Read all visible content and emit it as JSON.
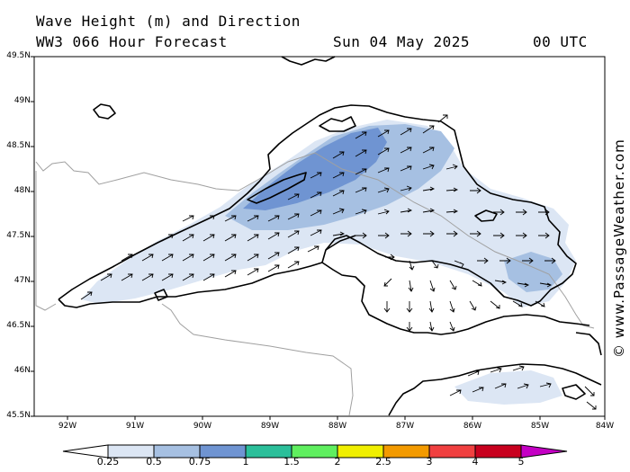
{
  "title": {
    "line1": "Wave Height (m) and Direction",
    "line2": "WW3 066 Hour Forecast",
    "date": "Sun 04 May 2025",
    "time": "00 UTC"
  },
  "watermark": "© www.PassageWeather.com",
  "lat_labels": [
    "49.5N",
    "49N",
    "48.5N",
    "48N",
    "47.5N",
    "47N",
    "46.5N",
    "46N",
    "45.5N"
  ],
  "lon_labels": [
    "92W",
    "91W",
    "90W",
    "89W",
    "88W",
    "87W",
    "86W",
    "85W",
    "84W"
  ],
  "colorbar": {
    "ticks": [
      "0.25",
      "0.5",
      "0.75",
      "1",
      "1.5",
      "2",
      "2.5",
      "3",
      "4",
      "5"
    ],
    "colors": [
      "#ffffff",
      "#dce6f4",
      "#a6c0e2",
      "#6f94d2",
      "#2bbf9a",
      "#5fef5f",
      "#f0ef00",
      "#f39a00",
      "#f04040",
      "#c8001e",
      "#c400c4"
    ]
  },
  "colors": {
    "shade_low": "#dce6f4",
    "shade_mid": "#a6c0e2",
    "shade_high": "#6f94d2",
    "coast": "#000000",
    "border": "#a0a0a0"
  }
}
